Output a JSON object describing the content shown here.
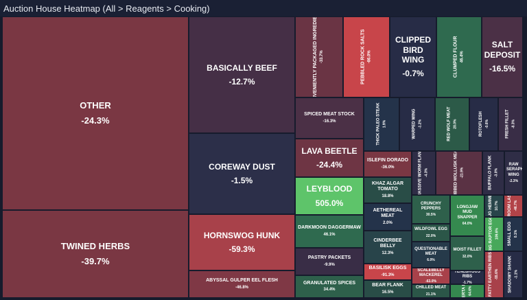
{
  "title": "Auction House Heatmap (All > Reagents > Cooking)",
  "colors": {
    "background": "#161b2c",
    "negative_strong": "#c24a4a",
    "negative_mid": "#8a3a44",
    "neutral": "#3a2e45",
    "positive_mid": "#2f6a4f",
    "positive_strong": "#5ec46a"
  },
  "cells": [
    {
      "name": "OTHER",
      "change": "-24.3%",
      "color": "#7a3743",
      "size": "xl"
    },
    {
      "name": "TWINED HERBS",
      "change": "-39.7%",
      "color": "#7a3743",
      "size": "xl"
    },
    {
      "name": "BASICALLY BEEF",
      "change": "-12.7%",
      "color": "#452f46",
      "size": "lg"
    },
    {
      "name": "COREWAY DUST",
      "change": "-1.5%",
      "color": "#2c2f49",
      "size": "lg"
    },
    {
      "name": "HORNSWOG HUNK",
      "change": "-59.3%",
      "color": "#a8414a",
      "size": "lg"
    },
    {
      "name": "ABYSSAL GULPER EEL FLESH",
      "change": "-46.8%",
      "color": "#7f3845",
      "size": "sm"
    },
    {
      "name": "CONVENIENTLY PACKAGED INGREDIENTS",
      "change": "-33.7%",
      "color": "#6a3444",
      "size": "sm",
      "vertical": true
    },
    {
      "name": "PEBBLED ROCK SALTS",
      "change": "-86.0%",
      "color": "#c8454a",
      "size": "sm",
      "vertical": true
    },
    {
      "name": "CLIPPED BIRD WING",
      "change": "-0.7%",
      "color": "#272c46",
      "size": "lg"
    },
    {
      "name": "CLUMPED FLOUR",
      "change": "46.4%",
      "color": "#2f6a4f",
      "size": "sm",
      "vertical": true
    },
    {
      "name": "SALT DEPOSIT",
      "change": "-16.5%",
      "color": "#4b3046",
      "size": "lg"
    },
    {
      "name": "SPICED MEAT STOCK",
      "change": "-16.3%",
      "color": "#4b3046",
      "size": "sm"
    },
    {
      "name": "THICK PALEO STEAK",
      "change": "1.9%",
      "color": "#24334a",
      "size": "xs",
      "vertical": true
    },
    {
      "name": "WARPED WING",
      "change": "-1.2%",
      "color": "#272c46",
      "size": "xs",
      "vertical": true
    },
    {
      "name": "RED WOLF MEAT",
      "change": "28.0%",
      "color": "#2c5a48",
      "size": "xs",
      "vertical": true
    },
    {
      "name": "ROTOFLESH",
      "change": "-0.6%",
      "color": "#272c46",
      "size": "xs",
      "vertical": true
    },
    {
      "name": "FRESH FILLET",
      "change": "-8.3%",
      "color": "#392d46",
      "size": "xs",
      "vertical": true
    },
    {
      "name": "LAVA BEETLE",
      "change": "-24.4%",
      "color": "#6e3544",
      "size": "lg"
    },
    {
      "name": "LEYBLOOD",
      "change": "505.0%",
      "color": "#5ec46a",
      "size": "lg"
    },
    {
      "name": "DARKMOON DAGGERMAW",
      "change": "46.1%",
      "color": "#2f6a4f",
      "size": "sm"
    },
    {
      "name": "PASTRY PACKETS",
      "change": "-9.9%",
      "color": "#392d46",
      "size": "sm"
    },
    {
      "name": "GRANULATED SPICES",
      "change": "34.4%",
      "color": "#2e604b",
      "size": "sm"
    },
    {
      "name": "ISLEFIN DORADO",
      "change": "-36.0%",
      "color": "#7a3743",
      "size": "sm"
    },
    {
      "name": "KHAZ ALGAR TOMATO",
      "change": "18.8%",
      "color": "#294d47",
      "size": "sm"
    },
    {
      "name": "AETHEREAL MEAT",
      "change": "2.0%",
      "color": "#24334a",
      "size": "sm"
    },
    {
      "name": "CINDERBEE BELLY",
      "change": "12.3%",
      "color": "#28444a",
      "size": "sm"
    },
    {
      "name": "BASILISK EGGS",
      "change": "-91.3%",
      "color": "#c8454a",
      "size": "sm"
    },
    {
      "name": "BEAR FLANK",
      "change": "16.5%",
      "color": "#294d47",
      "size": "sm"
    },
    {
      "name": "MASSIVE WORM FLANK",
      "change": "-4.3%",
      "color": "#2f2d46",
      "size": "xs",
      "vertical": true
    },
    {
      "name": "RIBBED MOLLUSK MEAT",
      "change": "-21.9%",
      "color": "#5a3244",
      "size": "xs",
      "vertical": true
    },
    {
      "name": "BUFFALO FLANK",
      "change": "-3.0%",
      "color": "#2f2d46",
      "size": "xs",
      "vertical": true
    },
    {
      "name": "RAW SERAPHIC WING",
      "change": "-2.3%",
      "color": "#2f2d46",
      "size": "xs"
    },
    {
      "name": "CRUNCHY PEPPERS",
      "change": "30.5%",
      "color": "#2e604b",
      "size": "xs"
    },
    {
      "name": "WILDFOWL EGG",
      "change": "22.0%",
      "color": "#2b5648",
      "size": "xs"
    },
    {
      "name": "QUESTIONABLE MEAT",
      "change": "6.0%",
      "color": "#263a4a",
      "size": "xs"
    },
    {
      "name": "SCALEBELLY MACKEREL",
      "change": "-63.0%",
      "color": "#a8414a",
      "size": "xs"
    },
    {
      "name": "CHILLED MEAT",
      "change": "21.1%",
      "color": "#2b5648",
      "size": "xs"
    },
    {
      "name": "LONGJAW MUD SNAPPER",
      "change": "64.0%",
      "color": "#35894f",
      "size": "xs"
    },
    {
      "name": "MOIST FILLET",
      "change": "32.0%",
      "color": "#2e604b",
      "size": "xs"
    },
    {
      "name": "TENEBROUS RIBS",
      "change": "-1.7%",
      "color": "#272c46",
      "size": "xs"
    },
    {
      "name": "LYVERTA PIKE",
      "change": "64.6%",
      "color": "#35894f",
      "size": "xs",
      "vertical": true
    },
    {
      "name": "BIG RAPTOR EGG",
      "change": "109.6%",
      "color": "#47a85a",
      "size": "xs",
      "vertical": true
    },
    {
      "name": "SMALL EGG",
      "change": "0.1%",
      "color": "#24334a",
      "size": "xs",
      "vertical": true
    },
    {
      "name": "FATTY EARTHEN RIBS",
      "change": "-55.6%",
      "color": "#a8414a",
      "size": "xs",
      "vertical": true
    },
    {
      "name": "SHADOWY SHANK",
      "change": "-1.1%",
      "color": "#272c46",
      "size": "xs",
      "vertical": true
    },
    {
      "name": "COCOA POWDER",
      "change": "-0.7%",
      "color": "#272c46",
      "size": "xs",
      "vertical": true
    },
    {
      "name": "ZESTIAN ZAPPER",
      "change": "-80.0%",
      "color": "#c8454a",
      "size": "xs",
      "vertical": true
    },
    {
      "name": "BUG HEMMER",
      "change": "10.7%",
      "color": "#28444a",
      "size": "xs",
      "vertical": true
    },
    {
      "name": "MUSHROOM LASAGNA",
      "change": "-46.7%",
      "color": "#b24348",
      "size": "xs",
      "vertical": true
    },
    {
      "name": "POCKET GREEN",
      "change": "324.6%",
      "color": "#5ec46a",
      "size": "xs",
      "vertical": true
    }
  ]
}
